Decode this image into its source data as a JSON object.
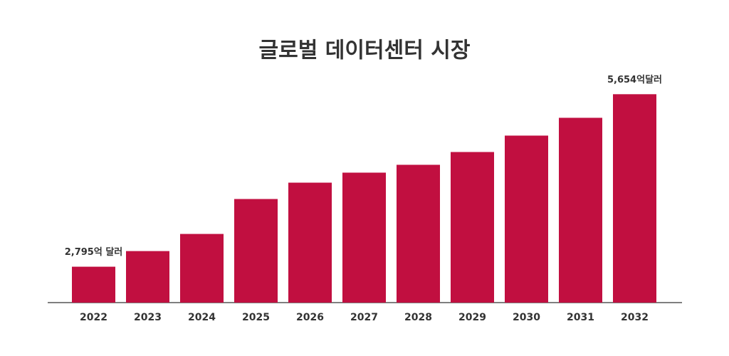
{
  "chart_data": {
    "type": "bar",
    "title": "글로벌 데이터센터 시장",
    "categories": [
      "2022",
      "2023",
      "2024",
      "2025",
      "2026",
      "2027",
      "2028",
      "2029",
      "2030",
      "2031",
      "2032"
    ],
    "values": [
      2795,
      3054,
      3338,
      3917,
      4188,
      4354,
      4484,
      4696,
      4968,
      5263,
      5654
    ],
    "value_labels": [
      "2,795억 달러",
      null,
      null,
      null,
      null,
      null,
      null,
      null,
      null,
      null,
      "5,654억달러"
    ],
    "color": "#c10f40",
    "ylim": [
      2200,
      6000
    ]
  }
}
